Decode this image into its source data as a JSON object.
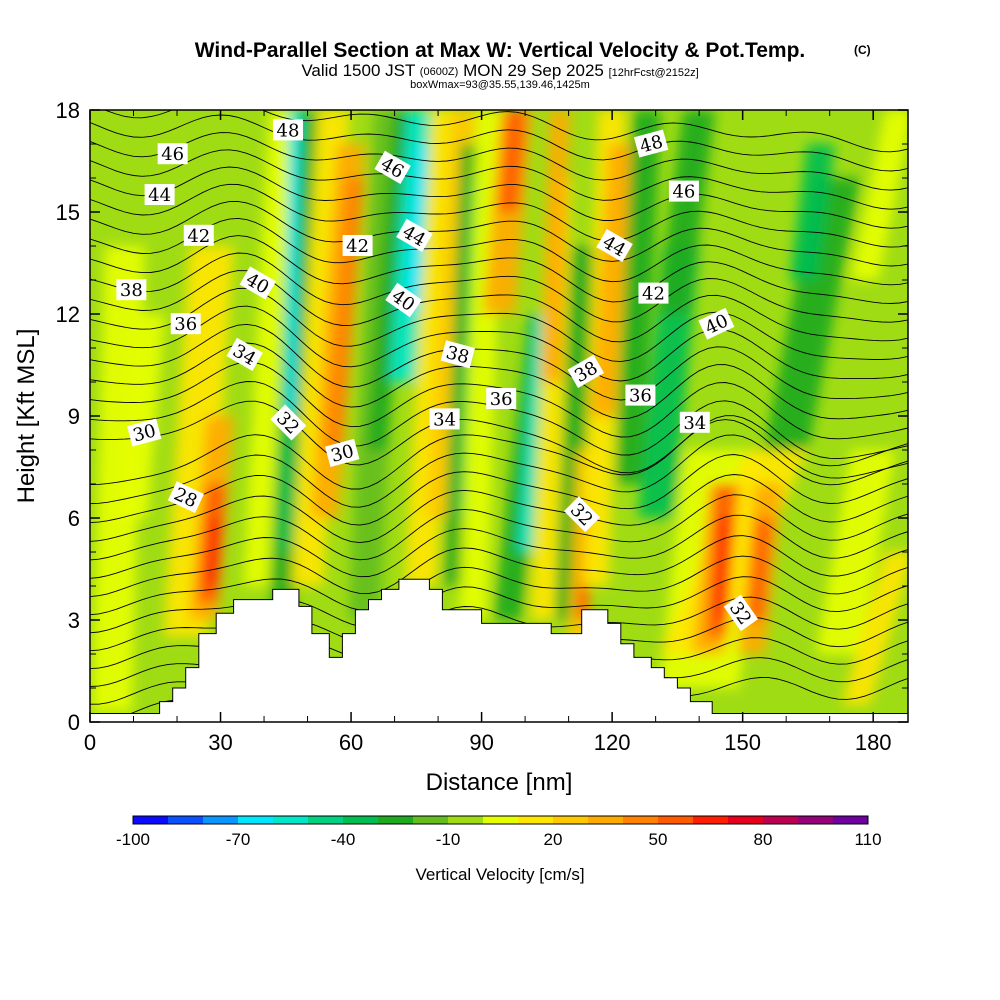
{
  "title": {
    "main": "Wind-Parallel Section at Max W: Vertical Velocity & Pot.Temp.",
    "copyright": "(C)",
    "valid_prefix": "Valid 1500 JST",
    "valid_utc": "(0600Z)",
    "valid_date": "MON 29 Sep 2025",
    "forecast": "[12hrFcst@2152z]",
    "boxinfo": "boxWmax=93@35.55,139.46,1425m"
  },
  "chart_data": {
    "type": "heatmap",
    "xlabel": "Distance [nm]",
    "ylabel": "Height [Kft MSL]",
    "xlim": [
      0,
      188
    ],
    "ylim": [
      0,
      18
    ],
    "x_ticks": [
      "0",
      "30",
      "60",
      "90",
      "120",
      "150",
      "180"
    ],
    "y_ticks": [
      "0",
      "3",
      "6",
      "9",
      "12",
      "15",
      "18"
    ],
    "colorbar": {
      "label": "Vertical Velocity [cm/s]",
      "tick_labels": [
        "-100",
        "-70",
        "-40",
        "-10",
        "20",
        "50",
        "80",
        "110"
      ],
      "colors": [
        "#0a0aff",
        "#0a50ff",
        "#0a96ff",
        "#00e6ff",
        "#00e6c8",
        "#00d282",
        "#00be50",
        "#1eaa1e",
        "#64be1e",
        "#a0dc14",
        "#e6ff00",
        "#ffe600",
        "#ffc800",
        "#ffaa00",
        "#ff8200",
        "#ff5a00",
        "#ff1e00",
        "#e6001e",
        "#be0050",
        "#960078",
        "#6e00a0"
      ]
    },
    "terrain_profile": [
      [
        0,
        0.25
      ],
      [
        16,
        0.25
      ],
      [
        16,
        0.6
      ],
      [
        19,
        0.6
      ],
      [
        19,
        1.0
      ],
      [
        22,
        1.0
      ],
      [
        22,
        1.6
      ],
      [
        25,
        1.6
      ],
      [
        25,
        2.6
      ],
      [
        29,
        2.6
      ],
      [
        29,
        3.2
      ],
      [
        33,
        3.2
      ],
      [
        33,
        3.6
      ],
      [
        42,
        3.6
      ],
      [
        42,
        3.9
      ],
      [
        48,
        3.9
      ],
      [
        48,
        3.4
      ],
      [
        51,
        3.4
      ],
      [
        51,
        2.6
      ],
      [
        55,
        2.6
      ],
      [
        55,
        1.9
      ],
      [
        58,
        1.9
      ],
      [
        58,
        2.6
      ],
      [
        61,
        2.6
      ],
      [
        61,
        3.3
      ],
      [
        64,
        3.3
      ],
      [
        64,
        3.6
      ],
      [
        67,
        3.6
      ],
      [
        67,
        3.9
      ],
      [
        71,
        3.9
      ],
      [
        71,
        4.2
      ],
      [
        78,
        4.2
      ],
      [
        78,
        3.9
      ],
      [
        81,
        3.9
      ],
      [
        81,
        3.3
      ],
      [
        90,
        3.3
      ],
      [
        90,
        2.9
      ],
      [
        106,
        2.9
      ],
      [
        106,
        2.6
      ],
      [
        113,
        2.6
      ],
      [
        113,
        3.3
      ],
      [
        119,
        3.3
      ],
      [
        119,
        2.9
      ],
      [
        122,
        2.9
      ],
      [
        122,
        2.3
      ],
      [
        125,
        2.3
      ],
      [
        125,
        1.9
      ],
      [
        129,
        1.9
      ],
      [
        129,
        1.6
      ],
      [
        132,
        1.6
      ],
      [
        132,
        1.3
      ],
      [
        135,
        1.3
      ],
      [
        135,
        1.0
      ],
      [
        138,
        1.0
      ],
      [
        138,
        0.6
      ],
      [
        143,
        0.6
      ],
      [
        143,
        0.25
      ],
      [
        188,
        0.25
      ]
    ],
    "pot_temp_labels": [
      {
        "text": "48",
        "x": 45.5,
        "y": 17.4,
        "rot": 0
      },
      {
        "text": "46",
        "x": 19,
        "y": 16.7,
        "rot": 0
      },
      {
        "text": "44",
        "x": 16,
        "y": 15.5,
        "rot": 0
      },
      {
        "text": "42",
        "x": 25,
        "y": 14.3,
        "rot": 0
      },
      {
        "text": "38",
        "x": 9.5,
        "y": 12.7,
        "rot": 0
      },
      {
        "text": "40",
        "x": 38.5,
        "y": 12.9,
        "rot": 30
      },
      {
        "text": "36",
        "x": 22,
        "y": 11.7,
        "rot": 0
      },
      {
        "text": "34",
        "x": 35.5,
        "y": 10.8,
        "rot": 30
      },
      {
        "text": "32",
        "x": 45.5,
        "y": 8.8,
        "rot": 45
      },
      {
        "text": "30",
        "x": 12.5,
        "y": 8.5,
        "rot": -15
      },
      {
        "text": "28",
        "x": 22,
        "y": 6.6,
        "rot": 25
      },
      {
        "text": "46",
        "x": 69.5,
        "y": 16.3,
        "rot": 30
      },
      {
        "text": "42",
        "x": 61.5,
        "y": 14.0,
        "rot": 0
      },
      {
        "text": "44",
        "x": 74.5,
        "y": 14.3,
        "rot": 30
      },
      {
        "text": "40",
        "x": 72,
        "y": 12.4,
        "rot": 35
      },
      {
        "text": "38",
        "x": 84.5,
        "y": 10.8,
        "rot": 15
      },
      {
        "text": "34",
        "x": 81.5,
        "y": 8.9,
        "rot": 0
      },
      {
        "text": "36",
        "x": 94.5,
        "y": 9.5,
        "rot": 0
      },
      {
        "text": "30",
        "x": 58,
        "y": 7.9,
        "rot": -15
      },
      {
        "text": "48",
        "x": 129,
        "y": 17.0,
        "rot": -15
      },
      {
        "text": "46",
        "x": 136.5,
        "y": 15.6,
        "rot": 0
      },
      {
        "text": "44",
        "x": 120.5,
        "y": 14.0,
        "rot": 30
      },
      {
        "text": "42",
        "x": 129.5,
        "y": 12.6,
        "rot": 0
      },
      {
        "text": "40",
        "x": 144,
        "y": 11.7,
        "rot": -25
      },
      {
        "text": "38",
        "x": 114,
        "y": 10.3,
        "rot": -30
      },
      {
        "text": "36",
        "x": 126.5,
        "y": 9.6,
        "rot": 0
      },
      {
        "text": "34",
        "x": 139,
        "y": 8.8,
        "rot": 0
      },
      {
        "text": "32",
        "x": 113,
        "y": 6.1,
        "rot": 45
      },
      {
        "text": "32",
        "x": 149.5,
        "y": 3.2,
        "rot": 55
      }
    ]
  }
}
